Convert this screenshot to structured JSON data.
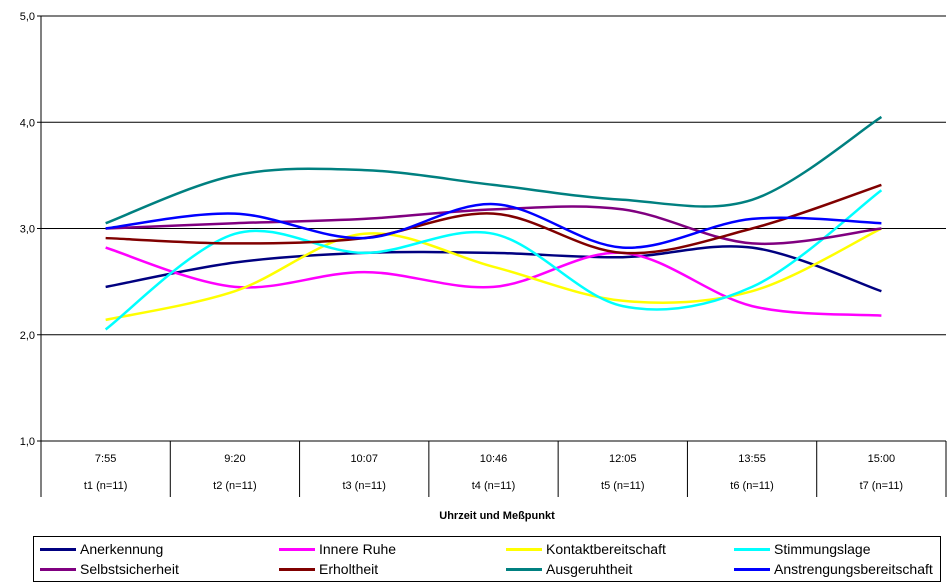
{
  "chart_data": {
    "type": "line",
    "title": "",
    "xlabel": "Uhrzeit und Meßpunkt",
    "ylabel": "",
    "ylim": [
      1.0,
      5.0
    ],
    "yticks": [
      "1,0",
      "2,0",
      "3,0",
      "4,0",
      "5,0"
    ],
    "grid": true,
    "legend_position": "bottom",
    "categories_time": [
      "7:55",
      "9:20",
      "10:07",
      "10:46",
      "12:05",
      "13:55",
      "15:00"
    ],
    "categories_point": [
      "t1 (n=11)",
      "t2 (n=11)",
      "t3 (n=11)",
      "t4 (n=11)",
      "t5 (n=11)",
      "t6 (n=11)",
      "t7 (n=11)"
    ],
    "series": [
      {
        "name": "Anerkennung",
        "color": "#000080",
        "values": [
          2.45,
          2.68,
          2.77,
          2.77,
          2.73,
          2.82,
          2.41
        ]
      },
      {
        "name": "Innere Ruhe",
        "color": "#FF00FF",
        "values": [
          2.82,
          2.45,
          2.59,
          2.45,
          2.77,
          2.27,
          2.18
        ]
      },
      {
        "name": "Kontaktbereitschaft",
        "color": "#FFFF00",
        "values": [
          2.14,
          2.41,
          2.95,
          2.64,
          2.32,
          2.41,
          3.0
        ]
      },
      {
        "name": "Stimmungslage",
        "color": "#00FFFF",
        "values": [
          2.05,
          2.95,
          2.77,
          2.95,
          2.27,
          2.45,
          3.36
        ]
      },
      {
        "name": "Selbstsicherheit",
        "color": "#800080",
        "values": [
          3.0,
          3.05,
          3.09,
          3.18,
          3.18,
          2.86,
          3.0
        ]
      },
      {
        "name": "Erholtheit",
        "color": "#800000",
        "values": [
          2.91,
          2.86,
          2.91,
          3.14,
          2.77,
          3.0,
          3.41
        ]
      },
      {
        "name": "Ausgeruhtheit",
        "color": "#008080",
        "values": [
          3.05,
          3.5,
          3.55,
          3.41,
          3.27,
          3.27,
          4.05
        ]
      },
      {
        "name": "Anstrengungsbereitschaft",
        "color": "#0000FF",
        "values": [
          3.0,
          3.14,
          2.91,
          3.23,
          2.82,
          3.09,
          3.05
        ]
      }
    ]
  }
}
